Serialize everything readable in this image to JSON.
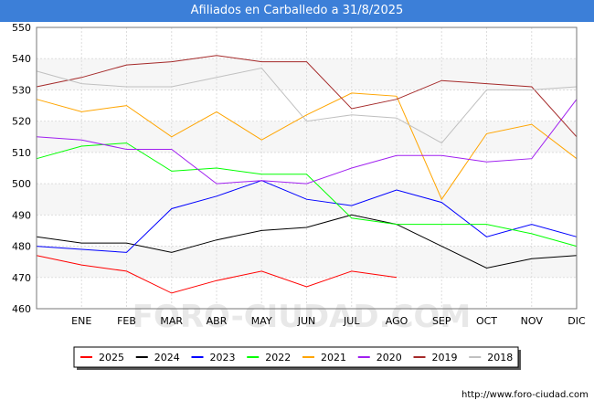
{
  "page": {
    "source": "http://www.foro-ciudad.com"
  },
  "chart_data": {
    "type": "line",
    "title": "Afiliados en Carballedo a 31/8/2025",
    "watermark": "FORO-CIUDAD.COM",
    "categories": [
      "",
      "ENE",
      "FEB",
      "MAR",
      "ABR",
      "MAY",
      "JUN",
      "JUL",
      "AGO",
      "SEP",
      "OCT",
      "NOV",
      "DIC"
    ],
    "ylim": [
      460,
      550
    ],
    "yticks": [
      460,
      470,
      480,
      490,
      500,
      510,
      520,
      530,
      540,
      550
    ],
    "grid": true,
    "legend_position": "bottom",
    "series": [
      {
        "name": "2025",
        "color": "#ff0000",
        "values": [
          477,
          474,
          472,
          465,
          469,
          472,
          467,
          472,
          470,
          null,
          null,
          null,
          null
        ]
      },
      {
        "name": "2024",
        "color": "#000000",
        "values": [
          483,
          481,
          481,
          478,
          482,
          485,
          486,
          490,
          487,
          480,
          473,
          476,
          477
        ]
      },
      {
        "name": "2023",
        "color": "#0000ff",
        "values": [
          480,
          479,
          478,
          492,
          496,
          501,
          495,
          493,
          498,
          494,
          483,
          487,
          483
        ]
      },
      {
        "name": "2022",
        "color": "#00ff00",
        "values": [
          508,
          512,
          513,
          504,
          505,
          503,
          503,
          489,
          487,
          487,
          487,
          484,
          480
        ]
      },
      {
        "name": "2021",
        "color": "#ffa500",
        "values": [
          527,
          523,
          525,
          515,
          523,
          514,
          522,
          529,
          528,
          495,
          516,
          519,
          508
        ]
      },
      {
        "name": "2020",
        "color": "#a020f0",
        "values": [
          515,
          514,
          511,
          511,
          500,
          501,
          500,
          505,
          509,
          509,
          507,
          508,
          527
        ]
      },
      {
        "name": "2019",
        "color": "#a52a2a",
        "values": [
          531,
          534,
          538,
          539,
          541,
          539,
          539,
          524,
          527,
          533,
          532,
          531,
          515
        ]
      },
      {
        "name": "2018",
        "color": "#c0c0c0",
        "values": [
          536,
          532,
          531,
          531,
          534,
          537,
          520,
          522,
          521,
          513,
          530,
          530,
          531
        ]
      }
    ]
  }
}
